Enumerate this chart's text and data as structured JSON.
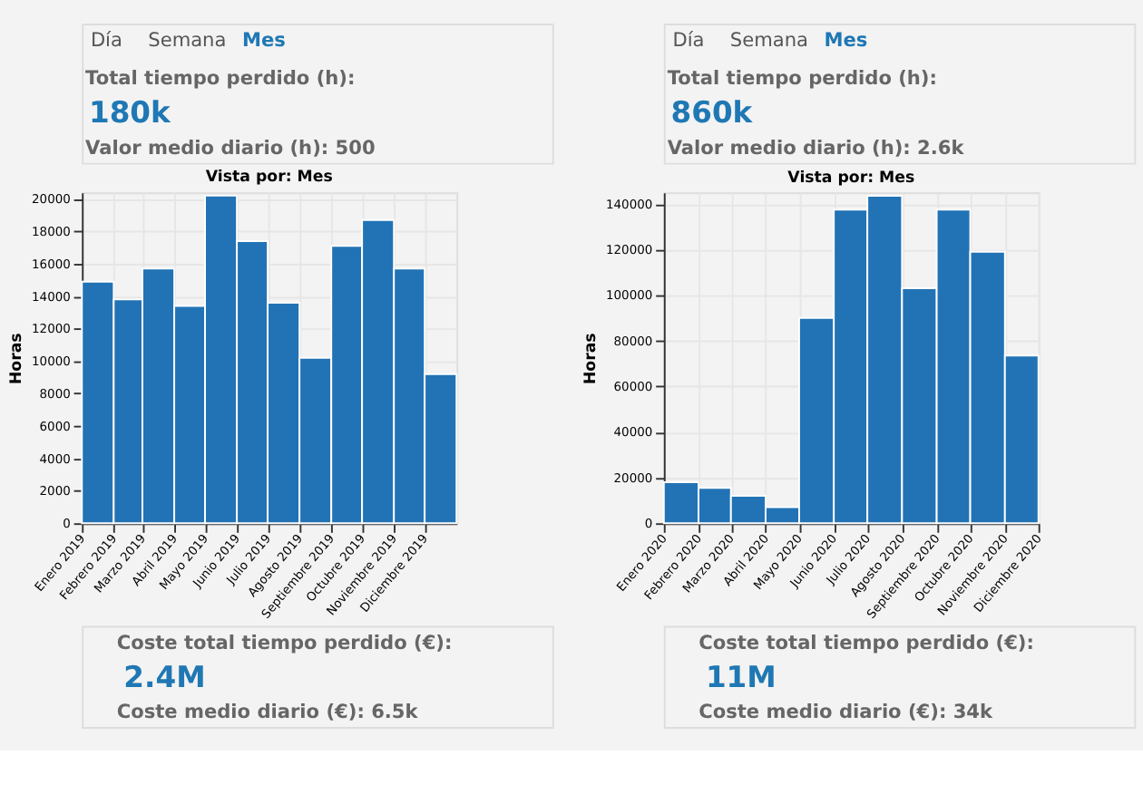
{
  "chart_data": [
    {
      "type": "bar",
      "title": "Vista por: Mes",
      "ylabel": "Horas",
      "color": "#2273b5",
      "grid": true,
      "x": [
        "2019-01-16",
        "2019-02-15",
        "2019-03-16",
        "2019-04-16",
        "2019-05-16",
        "2019-06-16",
        "2019-07-16",
        "2019-08-16",
        "2019-09-16",
        "2019-10-16",
        "2019-11-16",
        "2019-12-16"
      ],
      "values": [
        14900,
        13800,
        15700,
        13400,
        20200,
        17400,
        13600,
        10200,
        17100,
        18700,
        15700,
        9200
      ],
      "xlim": [
        "2019-01",
        "2020-01"
      ],
      "xticks": [
        {
          "value": "2019-01",
          "label": "Enero 2019"
        },
        {
          "value": "2019-02",
          "label": "Febrero 2019"
        },
        {
          "value": "2019-03",
          "label": "Marzo 2019"
        },
        {
          "value": "2019-04",
          "label": "Abril 2019"
        },
        {
          "value": "2019-05",
          "label": "Mayo 2019"
        },
        {
          "value": "2019-06",
          "label": "Junio 2019"
        },
        {
          "value": "2019-07",
          "label": "Julio 2019"
        },
        {
          "value": "2019-08",
          "label": "Agosto 2019"
        },
        {
          "value": "2019-09",
          "label": "Septiembre 2019"
        },
        {
          "value": "2019-10",
          "label": "Octubre 2019"
        },
        {
          "value": "2019-11",
          "label": "Noviembre 2019"
        },
        {
          "value": "2019-12",
          "label": "Diciembre 2019"
        }
      ],
      "ylim": [
        0,
        20400
      ],
      "yticks": [
        0,
        2000,
        4000,
        6000,
        8000,
        10000,
        12000,
        14000,
        16000,
        18000,
        20000
      ],
      "annotations": [
        "Día",
        "Semana",
        "Mes",
        "Total tiempo perdido (h):",
        "180k",
        "Valor medio diario (h): 500",
        "Coste total tiempo perdido (€):",
        "2.4M",
        "Coste medio diario (€): 6.5k"
      ]
    },
    {
      "type": "bar",
      "title": "Vista por: Mes",
      "ylabel": "Horas",
      "color": "#2273b5",
      "grid": true,
      "x": [
        "2020-01-16",
        "2020-02-15",
        "2020-03-16",
        "2020-04-16",
        "2020-05-16",
        "2020-06-16",
        "2020-07-16",
        "2020-08-16",
        "2020-09-16",
        "2020-10-16",
        "2020-11-16"
      ],
      "values": [
        18000,
        15500,
        12000,
        7000,
        90000,
        137500,
        143500,
        103000,
        137500,
        119000,
        73500
      ],
      "xlim": [
        "2020-01",
        "2020-12"
      ],
      "xticks": [
        {
          "value": "2020-01",
          "label": "Enero 2020"
        },
        {
          "value": "2020-02",
          "label": "Febrero 2020"
        },
        {
          "value": "2020-03",
          "label": "Marzo 2020"
        },
        {
          "value": "2020-04",
          "label": "Abril 2020"
        },
        {
          "value": "2020-05",
          "label": "Mayo 2020"
        },
        {
          "value": "2020-06",
          "label": "Junio 2020"
        },
        {
          "value": "2020-07",
          "label": "Julio 2020"
        },
        {
          "value": "2020-08",
          "label": "Agosto 2020"
        },
        {
          "value": "2020-09",
          "label": "Septiembre 2020"
        },
        {
          "value": "2020-10",
          "label": "Octubre 2020"
        },
        {
          "value": "2020-11",
          "label": "Noviembre 2020"
        },
        {
          "value": "2020-12",
          "label": "Diciembre 2020"
        }
      ],
      "ylim": [
        0,
        145000
      ],
      "yticks": [
        0,
        20000,
        40000,
        60000,
        80000,
        100000,
        120000,
        140000
      ],
      "annotations": [
        "Día",
        "Semana",
        "Mes",
        "Total tiempo perdido (h):",
        "860k",
        "Valor medio diario (h): 2.6k",
        "Coste total tiempo perdido (€):",
        "11M",
        "Coste medio diario (€): 34k"
      ]
    }
  ]
}
